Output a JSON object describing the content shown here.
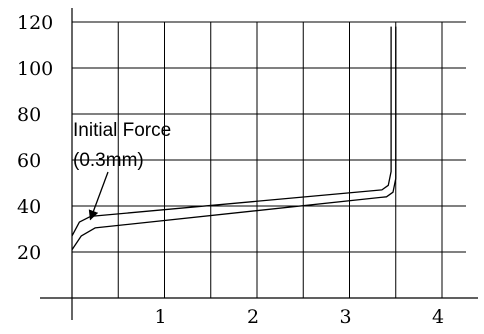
{
  "chart_data": {
    "type": "line",
    "title": "",
    "xlabel": "",
    "ylabel": "",
    "xlim": [
      -0.05,
      4.4
    ],
    "ylim": [
      0,
      125
    ],
    "grid": true,
    "x_ticks": [
      1,
      2,
      3,
      4
    ],
    "x_tick_labels": [
      "1",
      "2",
      "3",
      "4"
    ],
    "y_ticks": [
      20,
      40,
      60,
      80,
      100,
      120
    ],
    "y_tick_labels": [
      "20",
      "40",
      "60",
      "80",
      "100",
      "120"
    ],
    "series": [
      {
        "x": [
          0,
          0.08,
          0.2,
          3.35,
          3.42,
          3.45,
          3.45
        ],
        "y": [
          27,
          33,
          35.5,
          47,
          49,
          55,
          118
        ]
      },
      {
        "x": [
          0,
          0.1,
          0.25,
          3.4,
          3.47,
          3.5,
          3.5
        ],
        "y": [
          21,
          27,
          30.5,
          44,
          46,
          52,
          118
        ]
      }
    ],
    "annotations": [
      {
        "line1": "Initial Force",
        "line2": "(0.3mm)",
        "target": {
          "x": 0.22,
          "y": 35
        }
      }
    ]
  }
}
